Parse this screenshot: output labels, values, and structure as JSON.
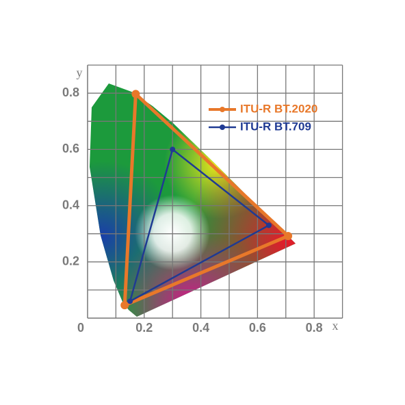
{
  "chart_data": {
    "type": "line",
    "x_label": "x",
    "y_label": "y",
    "xlim": [
      0,
      0.9
    ],
    "ylim": [
      0,
      0.9
    ],
    "xticks": [
      0,
      0.2,
      0.4,
      0.6,
      0.8
    ],
    "yticks": [
      0.2,
      0.4,
      0.6,
      0.8
    ],
    "xgrid": [
      0.1,
      0.2,
      0.3,
      0.4,
      0.5,
      0.6,
      0.7,
      0.8,
      0.9
    ],
    "ygrid": [
      0.1,
      0.2,
      0.3,
      0.4,
      0.5,
      0.6,
      0.7,
      0.8,
      0.9
    ],
    "legend": "upper right",
    "series": [
      {
        "name": "ITU-R BT.2020",
        "color": "#e8782a",
        "x": [
          0.708,
          0.17,
          0.131
        ],
        "values": [
          0.292,
          0.797,
          0.046
        ]
      },
      {
        "name": "ITU-R BT.709",
        "color": "#1f3a93",
        "x": [
          0.64,
          0.3,
          0.15
        ],
        "values": [
          0.33,
          0.6,
          0.06
        ]
      }
    ]
  }
}
